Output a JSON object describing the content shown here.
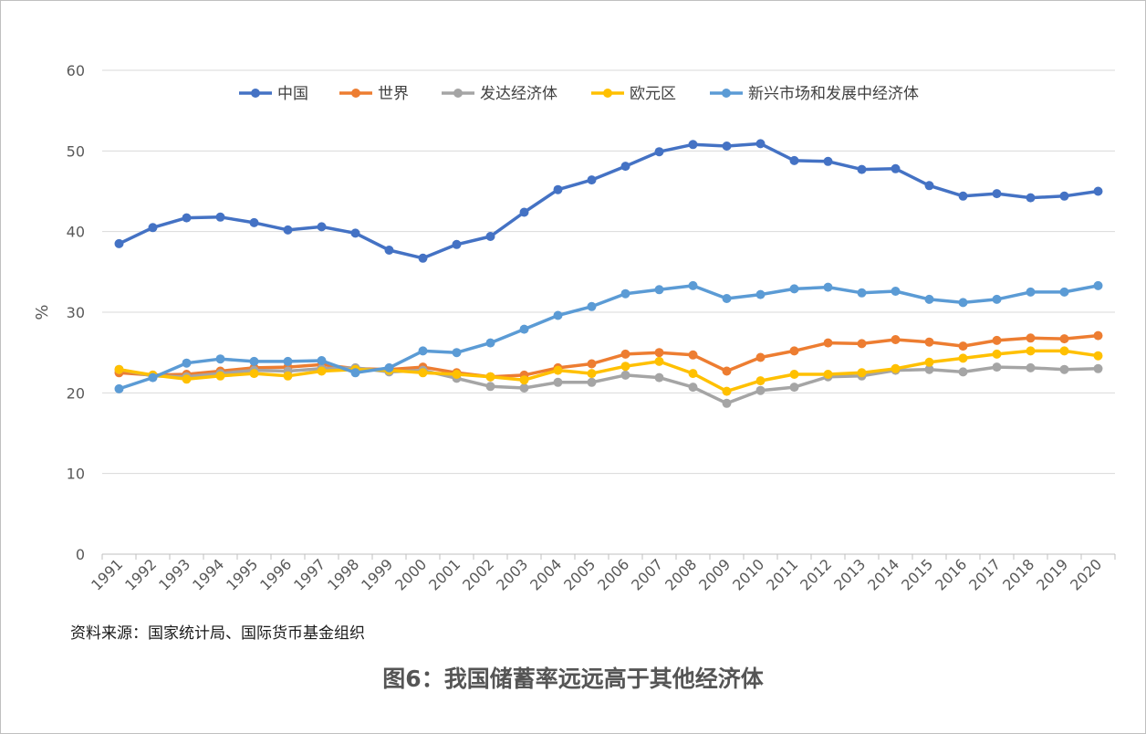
{
  "chart_data": {
    "type": "line",
    "ylabel": "%",
    "ylim": [
      0,
      60
    ],
    "yticks": [
      0,
      10,
      20,
      30,
      40,
      50,
      60
    ],
    "grid": true,
    "legend_position": "top",
    "x": [
      "1991",
      "1992",
      "1993",
      "1994",
      "1995",
      "1996",
      "1997",
      "1998",
      "1999",
      "2000",
      "2001",
      "2002",
      "2003",
      "2004",
      "2005",
      "2006",
      "2007",
      "2008",
      "2009",
      "2010",
      "2011",
      "2012",
      "2013",
      "2014",
      "2015",
      "2016",
      "2017",
      "2018",
      "2019",
      "2020"
    ],
    "series": [
      {
        "name": "中国",
        "color": "#4472C4",
        "values": [
          38.5,
          40.5,
          41.7,
          41.8,
          41.1,
          40.2,
          40.6,
          39.8,
          37.7,
          36.7,
          38.4,
          39.4,
          42.4,
          45.2,
          46.4,
          48.1,
          49.9,
          50.8,
          50.6,
          50.9,
          48.8,
          48.7,
          47.7,
          47.8,
          45.7,
          44.4,
          44.7,
          44.2,
          44.4,
          45.0
        ]
      },
      {
        "name": "世界",
        "color": "#ED7D31",
        "values": [
          22.5,
          22.2,
          22.3,
          22.7,
          23.1,
          23.2,
          23.5,
          23.0,
          22.9,
          23.2,
          22.5,
          22.0,
          22.2,
          23.1,
          23.6,
          24.8,
          25.0,
          24.7,
          22.7,
          24.4,
          25.2,
          26.2,
          26.1,
          26.6,
          26.3,
          25.8,
          26.5,
          26.8,
          26.7,
          27.1
        ]
      },
      {
        "name": "发达经济体",
        "color": "#A5A5A5",
        "values": [
          22.9,
          22.1,
          22.0,
          22.4,
          22.8,
          22.7,
          23.0,
          23.1,
          22.6,
          22.8,
          21.8,
          20.8,
          20.6,
          21.3,
          21.3,
          22.2,
          21.9,
          20.7,
          18.7,
          20.3,
          20.7,
          22.0,
          22.1,
          22.8,
          22.9,
          22.6,
          23.2,
          23.1,
          22.9,
          23.0
        ]
      },
      {
        "name": "欧元区",
        "color": "#FFC000",
        "values": [
          22.9,
          22.2,
          21.7,
          22.1,
          22.4,
          22.1,
          22.7,
          22.9,
          22.8,
          22.5,
          22.3,
          22.0,
          21.6,
          22.8,
          22.4,
          23.3,
          23.9,
          22.4,
          20.2,
          21.5,
          22.3,
          22.3,
          22.5,
          23.0,
          23.8,
          24.3,
          24.8,
          25.2,
          25.2,
          24.6
        ]
      },
      {
        "name": "新兴市场和发展中经济体",
        "color": "#5B9BD5",
        "values": [
          20.5,
          21.9,
          23.7,
          24.2,
          23.9,
          23.9,
          24.0,
          22.5,
          23.1,
          25.2,
          25.0,
          26.2,
          27.9,
          29.6,
          30.7,
          32.3,
          32.8,
          33.3,
          31.7,
          32.2,
          32.9,
          33.1,
          32.4,
          32.6,
          31.6,
          31.2,
          31.6,
          32.5,
          32.5,
          33.3
        ]
      }
    ]
  },
  "source_note": "资料来源：国家统计局、国际货币基金组织",
  "caption": "图6：我国储蓄率远远高于其他经济体"
}
